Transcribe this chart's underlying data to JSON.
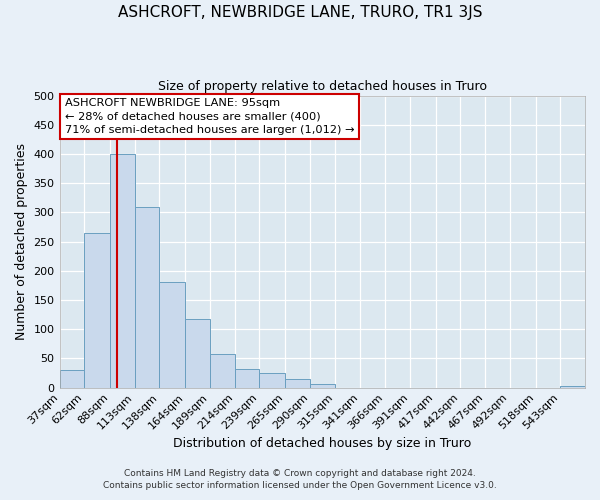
{
  "title": "ASHCROFT, NEWBRIDGE LANE, TRURO, TR1 3JS",
  "subtitle": "Size of property relative to detached houses in Truro",
  "xlabel": "Distribution of detached houses by size in Truro",
  "ylabel": "Number of detached properties",
  "bar_color": "#c9d9ec",
  "bar_edge_color": "#6a9fc0",
  "bg_color": "#dce8f0",
  "grid_color": "#ffffff",
  "fig_bg_color": "#e8f0f8",
  "vline_x": 95,
  "vline_color": "#cc0000",
  "categories": [
    "37sqm",
    "62sqm",
    "88sqm",
    "113sqm",
    "138sqm",
    "164sqm",
    "189sqm",
    "214sqm",
    "239sqm",
    "265sqm",
    "290sqm",
    "315sqm",
    "341sqm",
    "366sqm",
    "391sqm",
    "417sqm",
    "442sqm",
    "467sqm",
    "492sqm",
    "518sqm",
    "543sqm"
  ],
  "bin_edges": [
    37,
    62,
    88,
    113,
    138,
    164,
    189,
    214,
    239,
    265,
    290,
    315,
    341,
    366,
    391,
    417,
    442,
    467,
    492,
    518,
    543,
    568
  ],
  "values": [
    30,
    265,
    400,
    310,
    180,
    118,
    58,
    32,
    25,
    15,
    7,
    0,
    0,
    0,
    0,
    0,
    0,
    0,
    0,
    0,
    2
  ],
  "ylim": [
    0,
    500
  ],
  "yticks": [
    0,
    50,
    100,
    150,
    200,
    250,
    300,
    350,
    400,
    450,
    500
  ],
  "annotation_title": "ASHCROFT NEWBRIDGE LANE: 95sqm",
  "annotation_line1": "← 28% of detached houses are smaller (400)",
  "annotation_line2": "71% of semi-detached houses are larger (1,012) →",
  "footnote1": "Contains HM Land Registry data © Crown copyright and database right 2024.",
  "footnote2": "Contains public sector information licensed under the Open Government Licence v3.0."
}
